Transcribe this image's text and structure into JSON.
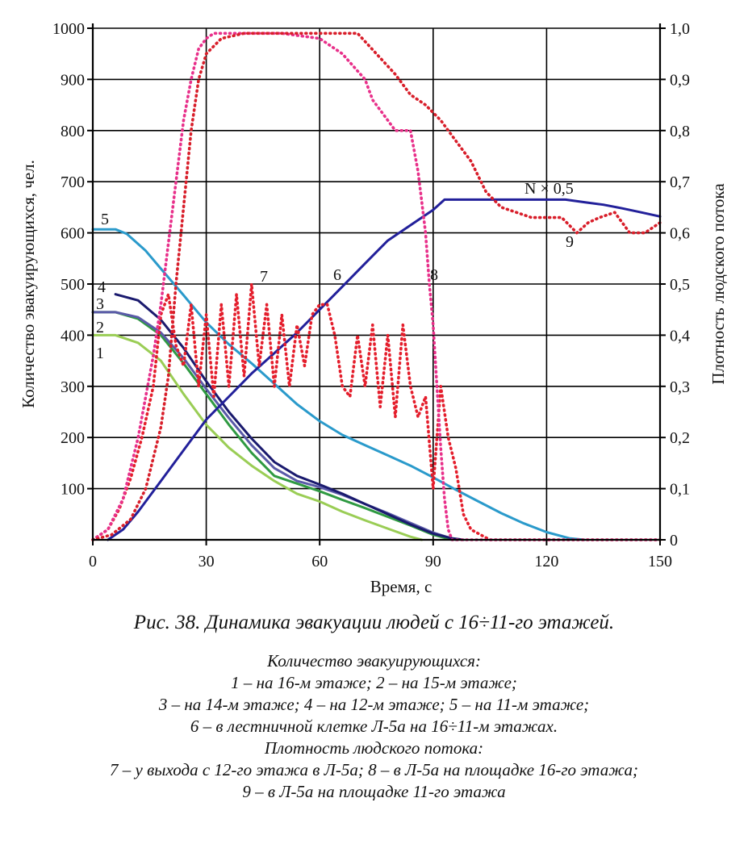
{
  "chart_data": {
    "type": "line",
    "xlabel": "Время, с",
    "ylabel": "Количество эвакуирующихся, чел.",
    "y2label": "Плотность людского потока",
    "xlim": [
      0,
      150
    ],
    "ylim": [
      0,
      1000
    ],
    "y2lim": [
      0,
      1.0
    ],
    "xticks": [
      "0",
      "30",
      "60",
      "90",
      "120",
      "150"
    ],
    "yticks": [
      "0",
      "100",
      "200",
      "300",
      "400",
      "500",
      "600",
      "700",
      "800",
      "900",
      "1000"
    ],
    "y2ticks": [
      "0",
      "0,1",
      "0,2",
      "0,3",
      "0,4",
      "0,5",
      "0,6",
      "0,7",
      "0,8",
      "0,9",
      "1,0"
    ],
    "grid": true,
    "series": [
      {
        "name": "1",
        "axis": "left",
        "style": "solid",
        "color": "#9acd55",
        "x": [
          0,
          6,
          12,
          18,
          24,
          30,
          36,
          42,
          48,
          54,
          60,
          66,
          72,
          78,
          84,
          87
        ],
        "y": [
          400,
          400,
          385,
          350,
          285,
          225,
          180,
          145,
          115,
          90,
          75,
          55,
          38,
          22,
          6,
          0
        ]
      },
      {
        "name": "2",
        "axis": "left",
        "style": "solid",
        "color": "#2f9a42",
        "x": [
          0,
          6,
          12,
          18,
          24,
          30,
          36,
          42,
          48,
          54,
          60,
          66,
          72,
          78,
          84,
          90,
          95
        ],
        "y": [
          445,
          445,
          432,
          400,
          345,
          285,
          225,
          170,
          125,
          110,
          95,
          78,
          62,
          45,
          28,
          10,
          0
        ]
      },
      {
        "name": "3",
        "axis": "left",
        "style": "solid",
        "color": "#5a5aa8",
        "x": [
          0,
          6,
          12,
          18,
          24,
          30,
          36,
          42,
          48,
          54,
          60,
          66,
          72,
          78,
          84,
          90,
          96
        ],
        "y": [
          445,
          445,
          435,
          405,
          355,
          295,
          238,
          185,
          140,
          115,
          103,
          88,
          70,
          52,
          33,
          14,
          0
        ]
      },
      {
        "name": "4",
        "axis": "left",
        "style": "solid",
        "color": "#1a1a6e",
        "x": [
          6,
          12,
          18,
          24,
          30,
          36,
          42,
          48,
          54,
          60,
          66,
          72,
          78,
          84,
          90,
          95,
          98
        ],
        "y": [
          480,
          468,
          430,
          375,
          310,
          250,
          198,
          152,
          125,
          108,
          90,
          70,
          50,
          30,
          12,
          3,
          0
        ]
      },
      {
        "name": "5",
        "axis": "left",
        "style": "solid",
        "color": "#2a9acb",
        "x": [
          0,
          6,
          9,
          14,
          18,
          24,
          30,
          36,
          42,
          48,
          54,
          60,
          66,
          72,
          78,
          84,
          90,
          96,
          102,
          108,
          114,
          120,
          126,
          130
        ],
        "y": [
          607,
          607,
          598,
          565,
          530,
          478,
          425,
          382,
          345,
          305,
          265,
          232,
          205,
          185,
          165,
          145,
          122,
          98,
          75,
          52,
          32,
          15,
          3,
          0
        ]
      },
      {
        "name": "6",
        "axis": "left",
        "style": "solid",
        "color": "#22209a",
        "label": "N × 0,5",
        "x": [
          4,
          8,
          12,
          18,
          24,
          30,
          36,
          42,
          48,
          54,
          60,
          66,
          72,
          78,
          84,
          90,
          93,
          120,
          125,
          130,
          135,
          140,
          145,
          150
        ],
        "y": [
          0,
          20,
          55,
          115,
          175,
          235,
          280,
          325,
          365,
          405,
          450,
          495,
          540,
          585,
          615,
          645,
          665,
          665,
          665,
          660,
          655,
          648,
          640,
          632
        ]
      },
      {
        "name": "7",
        "axis": "right",
        "style": "dotted",
        "color": "#e41e2c",
        "x": [
          0,
          4,
          7,
          10,
          13,
          16,
          18,
          20,
          22,
          24,
          26,
          28,
          30,
          32,
          34,
          36,
          38,
          40,
          42,
          44,
          46,
          48,
          50,
          52,
          54,
          56,
          58,
          60,
          62,
          64,
          66,
          68,
          70,
          72,
          74,
          76,
          78,
          80,
          82,
          84,
          86,
          88,
          90,
          92,
          94,
          96,
          98,
          100,
          105,
          110,
          115,
          120,
          130,
          140,
          150
        ],
        "y": [
          0,
          0.02,
          0.06,
          0.12,
          0.2,
          0.3,
          0.44,
          0.48,
          0.38,
          0.34,
          0.46,
          0.3,
          0.44,
          0.28,
          0.46,
          0.3,
          0.48,
          0.32,
          0.5,
          0.34,
          0.46,
          0.3,
          0.44,
          0.3,
          0.42,
          0.34,
          0.44,
          0.46,
          0.46,
          0.4,
          0.3,
          0.28,
          0.4,
          0.3,
          0.42,
          0.26,
          0.4,
          0.24,
          0.42,
          0.3,
          0.24,
          0.28,
          0.1,
          0.3,
          0.2,
          0.14,
          0.05,
          0.02,
          0,
          0,
          0,
          0,
          0,
          0,
          0
        ]
      },
      {
        "name": "8",
        "axis": "right",
        "style": "dotted",
        "color": "#e8308a",
        "x": [
          0,
          4,
          8,
          12,
          16,
          18,
          20,
          22,
          24,
          26,
          28,
          30,
          32,
          34,
          38,
          42,
          50,
          60,
          66,
          72,
          74,
          78,
          80,
          84,
          86,
          88,
          89,
          90,
          91,
          92,
          93,
          94,
          95,
          100,
          150
        ],
        "y": [
          0,
          0.02,
          0.08,
          0.2,
          0.36,
          0.46,
          0.58,
          0.7,
          0.82,
          0.9,
          0.96,
          0.98,
          0.99,
          0.99,
          0.99,
          0.99,
          0.99,
          0.98,
          0.95,
          0.9,
          0.86,
          0.82,
          0.8,
          0.8,
          0.72,
          0.6,
          0.5,
          0.42,
          0.3,
          0.18,
          0.08,
          0.02,
          0,
          0,
          0
        ]
      },
      {
        "name": "9",
        "axis": "right",
        "style": "dotted",
        "color": "#d81e2a",
        "x": [
          0,
          5,
          10,
          14,
          18,
          20,
          22,
          24,
          26,
          28,
          30,
          34,
          40,
          50,
          60,
          70,
          80,
          84,
          88,
          92,
          96,
          100,
          104,
          108,
          112,
          116,
          120,
          124,
          128,
          131,
          134,
          138,
          142,
          146,
          150
        ],
        "y": [
          0,
          0.01,
          0.04,
          0.1,
          0.22,
          0.32,
          0.5,
          0.65,
          0.8,
          0.9,
          0.95,
          0.98,
          0.99,
          0.99,
          0.99,
          0.99,
          0.91,
          0.87,
          0.85,
          0.82,
          0.78,
          0.74,
          0.68,
          0.65,
          0.64,
          0.63,
          0.63,
          0.63,
          0.6,
          0.62,
          0.63,
          0.64,
          0.6,
          0.6,
          0.62
        ]
      }
    ]
  },
  "caption": {
    "title": "Рис. 38. Динамика эвакуации людей с 16÷11-го этажей.",
    "lines": [
      "Количество эвакуирующихся:",
      "1 – на 16-м этаже; 2 – на 15-м этаже;",
      "3 – на 14-м этаже; 4 – на 12-м этаже; 5 – на 11-м этаже;",
      "6 – в лестничной клетке Л-5а на 16÷11-м этажах.",
      "Плотность людского потока:",
      "7 – у выхода с 12-го этажа в Л-5а; 8 – в Л-5а на площадке 16-го этажа;",
      "9 – в Л-5а на площадке 11-го этажа"
    ]
  }
}
